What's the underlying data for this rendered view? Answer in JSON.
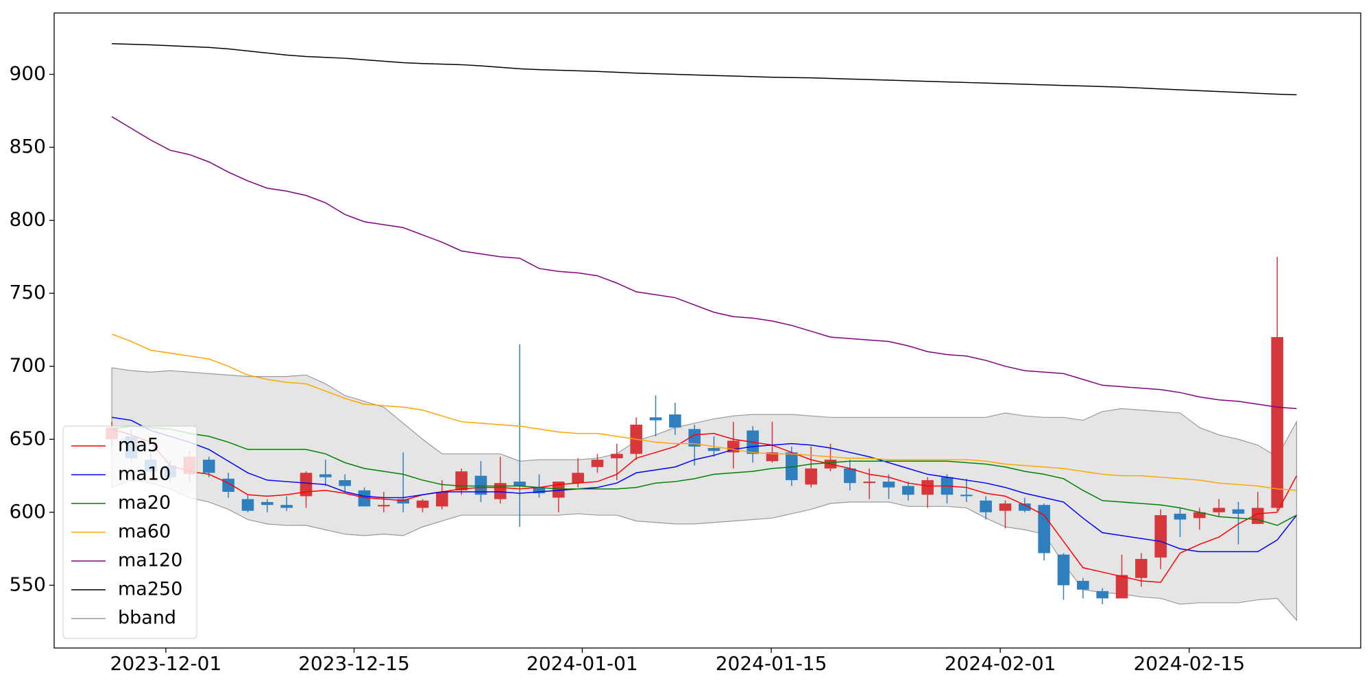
{
  "chart_data": {
    "type": "candlestick",
    "up_color": "#d6373a",
    "down_color": "#2f7fbf",
    "open": [
      650,
      652,
      636,
      632,
      626,
      636,
      623,
      609,
      607,
      605,
      611,
      626,
      622,
      615,
      604,
      609,
      603,
      604,
      615,
      625,
      609,
      621,
      617,
      610,
      620,
      631,
      637,
      640,
      665,
      667,
      657,
      644,
      641,
      656,
      635,
      641,
      619,
      630,
      630,
      620,
      621,
      618,
      612,
      624,
      612,
      608,
      601,
      606,
      605,
      571,
      553,
      546,
      541,
      555,
      569,
      599,
      596,
      600,
      602,
      592,
      603,
      null
    ],
    "high": [
      662,
      657,
      641,
      636,
      642,
      638,
      627,
      612,
      609,
      611,
      628,
      636,
      626,
      617,
      614,
      641,
      609,
      622,
      630,
      635,
      638,
      715,
      626,
      621,
      637,
      640,
      647,
      665,
      680,
      675,
      660,
      652,
      662,
      659,
      662,
      645,
      645,
      647,
      636,
      630,
      626,
      621,
      624,
      626,
      623,
      611,
      608,
      610,
      606,
      572,
      555,
      548,
      571,
      572,
      602,
      603,
      603,
      609,
      607,
      614,
      775,
      null
    ],
    "low": [
      645,
      634,
      627,
      620,
      621,
      624,
      610,
      600,
      600,
      601,
      603,
      618,
      614,
      604,
      600,
      600,
      600,
      602,
      612,
      607,
      606,
      590,
      610,
      600,
      617,
      627,
      622,
      636,
      652,
      653,
      632,
      638,
      630,
      634,
      634,
      618,
      617,
      628,
      615,
      609,
      609,
      608,
      603,
      606,
      607,
      595,
      589,
      600,
      567,
      540,
      541,
      537,
      541,
      549,
      561,
      583,
      588,
      597,
      578,
      592,
      601,
      null
    ],
    "close": [
      658,
      637,
      628,
      624,
      638,
      627,
      614,
      601,
      605,
      603,
      627,
      624,
      618,
      604,
      605,
      606,
      608,
      614,
      628,
      612,
      620,
      618,
      613,
      621,
      627,
      636,
      640,
      660,
      663,
      658,
      645,
      642,
      649,
      640,
      641,
      622,
      630,
      636,
      620,
      621,
      617,
      612,
      622,
      612,
      611,
      600,
      606,
      601,
      572,
      550,
      547,
      541,
      557,
      568,
      598,
      595,
      600,
      603,
      599,
      603,
      720,
      null
    ],
    "series": [
      {
        "name": "ma5",
        "color": "#ff0000",
        "values": [
          657,
          653,
          648,
          632,
          628,
          626,
          620,
          612,
          611,
          612,
          614,
          615,
          613,
          610,
          609,
          608,
          612,
          614,
          616,
          617,
          617,
          616,
          617,
          619,
          620,
          621,
          626,
          637,
          641,
          645,
          653,
          654,
          650,
          648,
          646,
          641,
          636,
          633,
          630,
          626,
          624,
          620,
          618,
          618,
          617,
          613,
          611,
          605,
          598,
          580,
          562,
          559,
          556,
          553,
          552,
          572,
          578,
          583,
          592,
          599,
          600,
          625
        ]
      },
      {
        "name": "ma10",
        "color": "#0000ff",
        "values": [
          665,
          663,
          656,
          652,
          648,
          643,
          635,
          627,
          622,
          621,
          620,
          619,
          614,
          611,
          610,
          610,
          612,
          614,
          614,
          614,
          614,
          613,
          614,
          615,
          616,
          617,
          620,
          627,
          629,
          631,
          636,
          639,
          643,
          645,
          646,
          647,
          646,
          644,
          641,
          638,
          634,
          630,
          626,
          624,
          622,
          620,
          617,
          613,
          610,
          607,
          596,
          586,
          584,
          582,
          580,
          575,
          573,
          573,
          573,
          573,
          581,
          598
        ]
      },
      {
        "name": "ma20",
        "color": "#008000",
        "values": [
          657,
          659,
          658,
          657,
          654,
          652,
          648,
          643,
          643,
          643,
          643,
          640,
          634,
          630,
          628,
          626,
          622,
          619,
          618,
          618,
          618,
          618,
          617,
          616,
          616,
          616,
          616,
          617,
          620,
          621,
          623,
          626,
          627,
          628,
          630,
          631,
          633,
          634,
          635,
          635,
          635,
          635,
          635,
          635,
          634,
          633,
          631,
          628,
          626,
          623,
          615,
          608,
          607,
          606,
          605,
          603,
          600,
          597,
          596,
          595,
          591,
          598
        ]
      },
      {
        "name": "ma60",
        "color": "#ffa500",
        "values": [
          722,
          717,
          711,
          709,
          707,
          705,
          700,
          694,
          691,
          689,
          688,
          683,
          678,
          674,
          673,
          672,
          670,
          666,
          662,
          661,
          660,
          659,
          657,
          655,
          654,
          654,
          652,
          650,
          648,
          647,
          647,
          645,
          643,
          641,
          640,
          640,
          639,
          638,
          637,
          637,
          636,
          636,
          636,
          636,
          636,
          635,
          633,
          632,
          631,
          630,
          628,
          626,
          625,
          625,
          624,
          623,
          622,
          620,
          619,
          618,
          616,
          615
        ]
      },
      {
        "name": "ma120",
        "color": "#800080",
        "values": [
          871,
          863,
          855,
          848,
          845,
          840,
          833,
          827,
          822,
          820,
          817,
          812,
          804,
          799,
          797,
          795,
          790,
          785,
          779,
          777,
          775,
          774,
          767,
          765,
          764,
          762,
          757,
          751,
          749,
          747,
          742,
          737,
          734,
          733,
          731,
          728,
          724,
          720,
          719,
          718,
          717,
          714,
          710,
          708,
          707,
          704,
          700,
          697,
          696,
          695,
          691,
          687,
          686,
          685,
          684,
          682,
          679,
          677,
          676,
          674,
          672,
          671
        ]
      },
      {
        "name": "ma250",
        "color": "#000000",
        "values": [
          921,
          920.6,
          920.2,
          919.6,
          919,
          918.4,
          917.4,
          916,
          914.6,
          913.2,
          912.2,
          911.6,
          911,
          910,
          909,
          908,
          907.4,
          907,
          906.6,
          905.8,
          904.8,
          903.8,
          903.2,
          902.8,
          902.4,
          902,
          901.4,
          900.8,
          900.4,
          900,
          899.6,
          899.2,
          898.8,
          898.4,
          898,
          897.8,
          897.6,
          897.2,
          896.8,
          896.4,
          896,
          895.6,
          895.2,
          894.8,
          894.4,
          894,
          893.6,
          893.2,
          892.8,
          892.4,
          892,
          891.6,
          891.2,
          890.6,
          890,
          889.4,
          888.8,
          888.2,
          887.6,
          887,
          886.4,
          886
        ]
      }
    ],
    "band": {
      "name": "bband",
      "color": "#999999",
      "fill": "#e5e5e5",
      "upper": [
        699,
        697,
        696,
        697,
        696,
        695,
        694,
        693,
        693,
        693,
        694,
        688,
        680,
        676,
        672,
        661,
        650,
        640,
        640,
        640,
        640,
        635,
        636,
        636,
        636,
        637,
        640,
        649,
        653,
        658,
        661,
        664,
        666,
        667,
        667,
        667,
        666,
        665,
        665,
        665,
        665,
        665,
        665,
        665,
        665,
        665,
        668,
        666,
        665,
        665,
        663,
        669,
        671,
        670,
        669,
        668,
        658,
        653,
        650,
        646,
        638,
        662
      ],
      "lower": [
        617,
        622,
        620,
        616,
        610,
        607,
        602,
        595,
        592,
        591,
        591,
        588,
        585,
        584,
        585,
        584,
        590,
        594,
        598,
        598,
        598,
        598,
        598,
        598,
        599,
        598,
        598,
        594,
        593,
        592,
        592,
        593,
        594,
        595,
        596,
        599,
        602,
        606,
        607,
        607,
        607,
        604,
        604,
        604,
        603,
        596,
        590,
        588,
        585,
        565,
        547,
        545,
        544,
        542,
        541,
        537,
        538,
        538,
        538,
        540,
        541,
        526
      ]
    },
    "xlim": [
      -2.97,
      64.3
    ],
    "xticks": [
      {
        "value": 2.78,
        "label": "2023-12-01"
      },
      {
        "value": 12.47,
        "label": "2023-12-15"
      },
      {
        "value": 24.22,
        "label": "2024-01-01"
      },
      {
        "value": 33.95,
        "label": "2024-01-15"
      },
      {
        "value": 45.74,
        "label": "2024-02-01"
      },
      {
        "value": 55.47,
        "label": "2024-02-15"
      }
    ],
    "ylim": [
      507,
      942
    ],
    "yticks": [
      550,
      600,
      650,
      700,
      750,
      800,
      850,
      900
    ],
    "grid": false,
    "legend": "lower left"
  }
}
